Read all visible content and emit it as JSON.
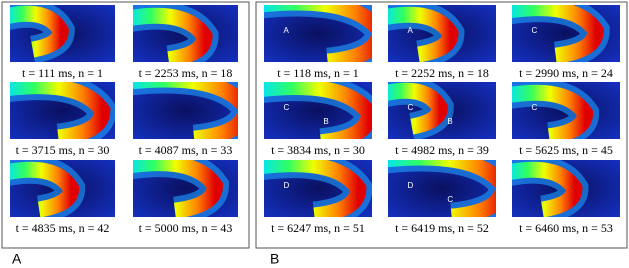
{
  "panels": [
    {
      "label": "A",
      "frames": [
        {
          "caption": "t = 111 ms, n = 1"
        },
        {
          "caption": "t = 2253 ms, n = 18"
        },
        {
          "caption": "t = 3715 ms, n = 30"
        },
        {
          "caption": "t = 4087 ms, n = 33"
        },
        {
          "caption": "t = 4835 ms, n = 42"
        },
        {
          "caption": "t = 5000 ms, n = 43"
        }
      ]
    },
    {
      "label": "B",
      "frames": [
        {
          "caption": "t = 118 ms, n = 1",
          "markers": [
            "A"
          ]
        },
        {
          "caption": "t = 2252 ms, n = 18",
          "markers": [
            "A"
          ]
        },
        {
          "caption": "t = 2990 ms, n = 24",
          "markers": [
            "C"
          ]
        },
        {
          "caption": "t = 3834 ms, n = 30",
          "markers": [
            "C",
            "B"
          ]
        },
        {
          "caption": "t = 4982 ms, n = 39",
          "markers": [
            "C",
            "B"
          ]
        },
        {
          "caption": "t = 5625 ms, n = 45",
          "markers": [
            "C"
          ]
        },
        {
          "caption": "t = 6247 ms, n = 51",
          "markers": [
            "D"
          ]
        },
        {
          "caption": "t = 6419 ms, n = 52",
          "markers": [
            "D",
            "C"
          ]
        },
        {
          "caption": "t = 6460 ms, n = 53"
        }
      ]
    }
  ]
}
